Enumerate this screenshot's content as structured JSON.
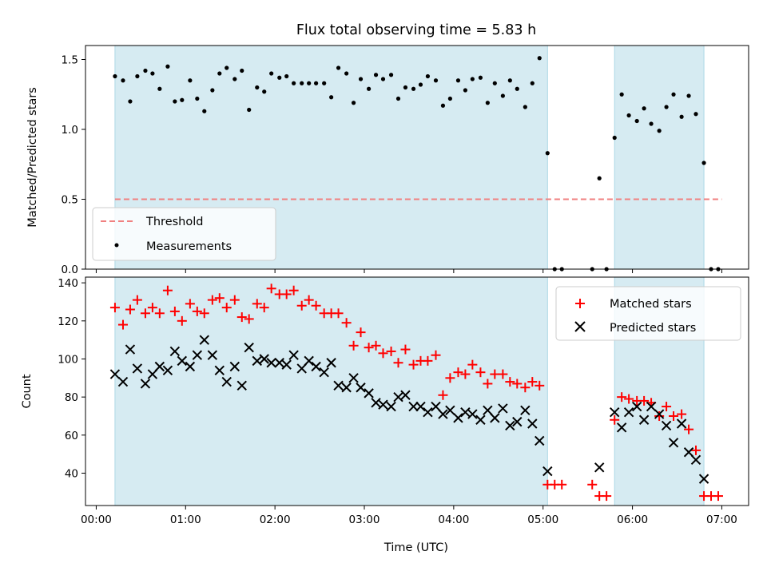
{
  "chart_data": {
    "title": "Flux total observing time = 5.83 h",
    "xlabel": "Time (UTC)",
    "x_unit": "hours after 00:00 UTC",
    "xlim": [
      -0.12,
      7.3
    ],
    "xticks": [
      0,
      1,
      2,
      3,
      4,
      5,
      6,
      7
    ],
    "xtick_labels": [
      "00:00",
      "01:00",
      "02:00",
      "03:00",
      "04:00",
      "05:00",
      "06:00",
      "07:00"
    ],
    "shaded_intervals": [
      [
        0.21,
        5.05
      ],
      [
        5.8,
        6.8
      ]
    ],
    "shade_color": "#add8e6",
    "panels": [
      {
        "type": "scatter",
        "ylabel": "Matched/Predicted stars",
        "ylim": [
          0,
          1.6
        ],
        "yticks": [
          0.0,
          0.5,
          1.0,
          1.5
        ],
        "ytick_labels": [
          "0.0",
          "0.5",
          "1.0",
          "1.5"
        ],
        "threshold": {
          "name": "Threshold",
          "y": 0.5,
          "x_range": [
            0.21,
            7.0
          ],
          "color": "#f08080"
        },
        "series": [
          {
            "name": "Measurements",
            "color": "#000000",
            "marker": "dot",
            "x": [
              0.21,
              0.3,
              0.38,
              0.46,
              0.55,
              0.63,
              0.71,
              0.8,
              0.88,
              0.96,
              1.05,
              1.13,
              1.21,
              1.3,
              1.38,
              1.46,
              1.55,
              1.63,
              1.71,
              1.8,
              1.88,
              1.96,
              2.05,
              2.13,
              2.21,
              2.3,
              2.38,
              2.46,
              2.55,
              2.63,
              2.71,
              2.8,
              2.88,
              2.96,
              3.05,
              3.13,
              3.21,
              3.3,
              3.38,
              3.46,
              3.55,
              3.63,
              3.71,
              3.8,
              3.88,
              3.96,
              4.05,
              4.13,
              4.21,
              4.3,
              4.38,
              4.46,
              4.55,
              4.63,
              4.71,
              4.8,
              4.88,
              4.96,
              5.05,
              5.13,
              5.21,
              5.55,
              5.63,
              5.71,
              5.8,
              5.88,
              5.96,
              6.05,
              6.13,
              6.21,
              6.3,
              6.38,
              6.46,
              6.55,
              6.63,
              6.71,
              6.8,
              6.88,
              6.96
            ],
            "y": [
              1.38,
              1.35,
              1.2,
              1.38,
              1.42,
              1.4,
              1.29,
              1.45,
              1.2,
              1.21,
              1.35,
              1.22,
              1.13,
              1.28,
              1.4,
              1.44,
              1.36,
              1.42,
              1.14,
              1.3,
              1.27,
              1.4,
              1.37,
              1.38,
              1.33,
              1.33,
              1.33,
              1.33,
              1.33,
              1.23,
              1.44,
              1.4,
              1.19,
              1.36,
              1.29,
              1.39,
              1.36,
              1.39,
              1.22,
              1.3,
              1.29,
              1.32,
              1.38,
              1.35,
              1.17,
              1.22,
              1.35,
              1.28,
              1.36,
              1.37,
              1.19,
              1.33,
              1.24,
              1.35,
              1.29,
              1.16,
              1.33,
              1.51,
              0.83,
              0.0,
              0.0,
              0.0,
              0.65,
              0.0,
              0.94,
              1.25,
              1.1,
              1.06,
              1.15,
              1.04,
              0.99,
              1.16,
              1.25,
              1.09,
              1.24,
              1.11,
              0.76,
              0.0,
              0.0
            ]
          }
        ],
        "legend": {
          "placement": "lower-left",
          "entries": [
            "Threshold",
            "Measurements"
          ]
        }
      },
      {
        "type": "scatter",
        "ylabel": "Count",
        "ylim": [
          23,
          143
        ],
        "yticks": [
          40,
          60,
          80,
          100,
          120,
          140
        ],
        "ytick_labels": [
          "40",
          "60",
          "80",
          "100",
          "120",
          "140"
        ],
        "series": [
          {
            "name": "Matched stars",
            "color": "#ff0000",
            "marker": "plus",
            "x": [
              0.21,
              0.3,
              0.38,
              0.46,
              0.55,
              0.63,
              0.71,
              0.8,
              0.88,
              0.96,
              1.05,
              1.13,
              1.21,
              1.3,
              1.38,
              1.46,
              1.55,
              1.63,
              1.71,
              1.8,
              1.88,
              1.96,
              2.05,
              2.13,
              2.21,
              2.3,
              2.38,
              2.46,
              2.55,
              2.63,
              2.71,
              2.8,
              2.88,
              2.96,
              3.05,
              3.13,
              3.21,
              3.3,
              3.38,
              3.46,
              3.55,
              3.63,
              3.71,
              3.8,
              3.88,
              3.96,
              4.05,
              4.13,
              4.21,
              4.3,
              4.38,
              4.46,
              4.55,
              4.63,
              4.71,
              4.8,
              4.88,
              4.96,
              5.05,
              5.13,
              5.21,
              5.55,
              5.63,
              5.71,
              5.8,
              5.88,
              5.96,
              6.05,
              6.13,
              6.21,
              6.3,
              6.38,
              6.46,
              6.55,
              6.63,
              6.71,
              6.8,
              6.88,
              6.96
            ],
            "y": [
              127,
              118,
              126,
              131,
              124,
              127,
              124,
              136,
              125,
              120,
              129,
              125,
              124,
              131,
              132,
              127,
              131,
              122,
              121,
              129,
              127,
              137,
              134,
              134,
              136,
              128,
              131,
              128,
              124,
              124,
              124,
              119,
              107,
              114,
              106,
              107,
              103,
              104,
              98,
              105,
              97,
              99,
              99,
              102,
              81,
              90,
              93,
              92,
              97,
              93,
              87,
              92,
              92,
              88,
              87,
              85,
              88,
              86,
              34,
              34,
              34,
              34,
              28,
              28,
              68,
              80,
              79,
              78,
              78,
              77,
              70,
              75,
              70,
              71,
              63,
              52,
              28,
              28,
              28
            ]
          },
          {
            "name": "Predicted stars",
            "color": "#000000",
            "marker": "cross",
            "x": [
              0.21,
              0.3,
              0.38,
              0.46,
              0.55,
              0.63,
              0.71,
              0.8,
              0.88,
              0.96,
              1.05,
              1.13,
              1.21,
              1.3,
              1.38,
              1.46,
              1.55,
              1.63,
              1.71,
              1.8,
              1.88,
              1.96,
              2.05,
              2.13,
              2.21,
              2.3,
              2.38,
              2.46,
              2.55,
              2.63,
              2.71,
              2.8,
              2.88,
              2.96,
              3.05,
              3.13,
              3.21,
              3.3,
              3.38,
              3.46,
              3.55,
              3.63,
              3.71,
              3.8,
              3.88,
              3.96,
              4.05,
              4.13,
              4.21,
              4.3,
              4.38,
              4.46,
              4.55,
              4.63,
              4.71,
              4.8,
              4.88,
              4.96,
              5.05,
              5.63,
              5.8,
              5.88,
              5.96,
              6.05,
              6.13,
              6.21,
              6.3,
              6.38,
              6.46,
              6.55,
              6.63,
              6.71,
              6.8
            ],
            "y": [
              92,
              88,
              105,
              95,
              87,
              92,
              96,
              94,
              104,
              99,
              96,
              102,
              110,
              102,
              94,
              88,
              96,
              86,
              106,
              99,
              100,
              98,
              98,
              97,
              102,
              95,
              99,
              96,
              93,
              98,
              86,
              85,
              90,
              85,
              82,
              77,
              76,
              75,
              80,
              81,
              75,
              75,
              72,
              75,
              71,
              73,
              69,
              72,
              71,
              68,
              73,
              69,
              74,
              65,
              67,
              73,
              66,
              57,
              41,
              43,
              72,
              64,
              72,
              75,
              68,
              75,
              71,
              65,
              56,
              66,
              51,
              47,
              37
            ]
          }
        ],
        "legend": {
          "placement": "upper-right",
          "entries": [
            "Matched stars",
            "Predicted stars"
          ]
        }
      }
    ]
  }
}
